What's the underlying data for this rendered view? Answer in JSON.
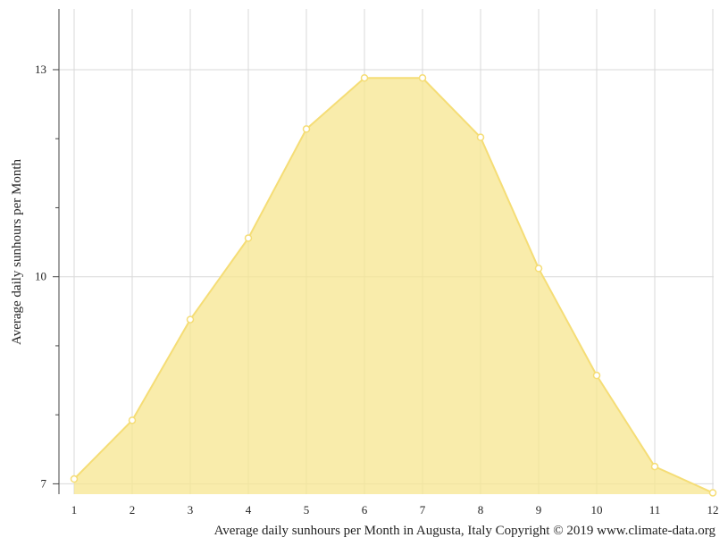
{
  "chart_data": {
    "type": "area",
    "xlabel": "Average daily sunhours per Month in Augusta, Italy Copyright © 2019 www.climate-data.org",
    "ylabel": "Average daily sunhours per Month",
    "x": [
      "1",
      "2",
      "3",
      "4",
      "5",
      "6",
      "7",
      "8",
      "9",
      "10",
      "11",
      "12"
    ],
    "series": [
      {
        "values": [
          7.07,
          7.92,
          9.38,
          10.56,
          12.14,
          12.88,
          12.88,
          12.02,
          10.12,
          8.57,
          7.25,
          6.87
        ]
      }
    ],
    "yticks": [
      "7",
      "10",
      "13"
    ],
    "ylim": [
      6.85,
      13.88
    ],
    "grid": true,
    "colors": {
      "fill": "#f7e58f",
      "line": "#f5dd76",
      "marker_fill": "#ffffff",
      "grid": "#d9d9d9",
      "axis": "#444444"
    }
  }
}
